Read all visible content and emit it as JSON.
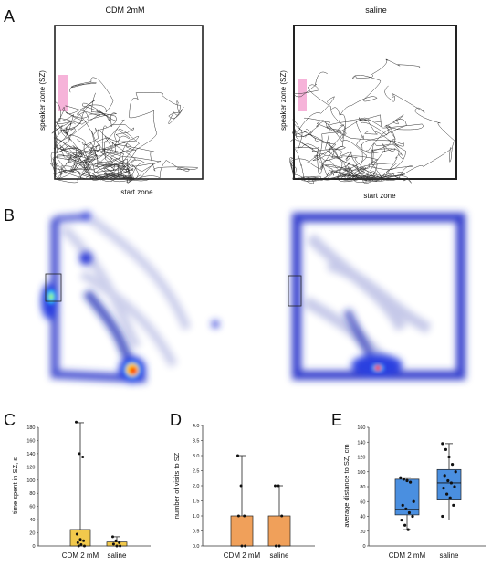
{
  "panels": {
    "a": "A",
    "b": "B",
    "c": "C",
    "d": "D",
    "e": "E"
  },
  "track_panels": [
    {
      "title": "CDM 2mM",
      "side_label": "speaker zone (SZ)",
      "bottom_label": "start zone"
    },
    {
      "title": "saline",
      "side_label": "speaker zone (SZ)",
      "bottom_label": "start zone"
    }
  ],
  "colors": {
    "speaker_zone": "#f4a6d2",
    "bar_c": "#f2c94c",
    "bar_d": "#f0a05a",
    "box_e": "#4a8fe0",
    "heat_low": "#1a2aa8",
    "heat_high": "#ff2a00"
  },
  "chart_data": [
    {
      "type": "bar",
      "panel": "C",
      "ylabel": "time spent in SZ, s",
      "ylim": [
        0,
        180
      ],
      "yticks": [
        0,
        20,
        40,
        60,
        80,
        100,
        120,
        140,
        160,
        180
      ],
      "categories": [
        "CDM 2 mM",
        "saline"
      ],
      "values": [
        25,
        6
      ],
      "error_max": [
        187,
        14
      ],
      "points": [
        [
          188,
          140,
          135,
          18,
          10,
          8,
          5,
          2,
          0,
          0
        ],
        [
          14,
          8,
          5,
          3,
          0,
          0
        ]
      ]
    },
    {
      "type": "bar",
      "panel": "D",
      "ylabel": "number of visits to SZ",
      "ylim": [
        0,
        4.0
      ],
      "yticks": [
        "0.0",
        "0.5",
        "1.0",
        "1.5",
        "2.0",
        "2.5",
        "3.0",
        "3.5",
        "4.0"
      ],
      "categories": [
        "CDM 2 mM",
        "saline"
      ],
      "values": [
        1.0,
        1.0
      ],
      "error_max": [
        3.0,
        2.0
      ],
      "points": [
        [
          3,
          2,
          1,
          1,
          0,
          0
        ],
        [
          2,
          2,
          1,
          0,
          0
        ]
      ]
    },
    {
      "type": "box",
      "panel": "E",
      "ylabel": "average distance to SZ, cm",
      "ylim": [
        0,
        160
      ],
      "yticks": [
        0,
        20,
        40,
        60,
        80,
        100,
        120,
        140,
        160
      ],
      "categories": [
        "CDM 2 mM",
        "saline"
      ],
      "boxes": [
        {
          "min": 22,
          "q1": 42,
          "median": 49,
          "q3": 90,
          "max": 92
        },
        {
          "min": 35,
          "q1": 62,
          "median": 85,
          "q3": 103,
          "max": 138
        }
      ],
      "points": [
        [
          92,
          90,
          88,
          86,
          60,
          55,
          50,
          45,
          40,
          35,
          28,
          22
        ],
        [
          138,
          130,
          120,
          110,
          100,
          95,
          88,
          85,
          80,
          78,
          70,
          65,
          55,
          40
        ]
      ]
    }
  ]
}
